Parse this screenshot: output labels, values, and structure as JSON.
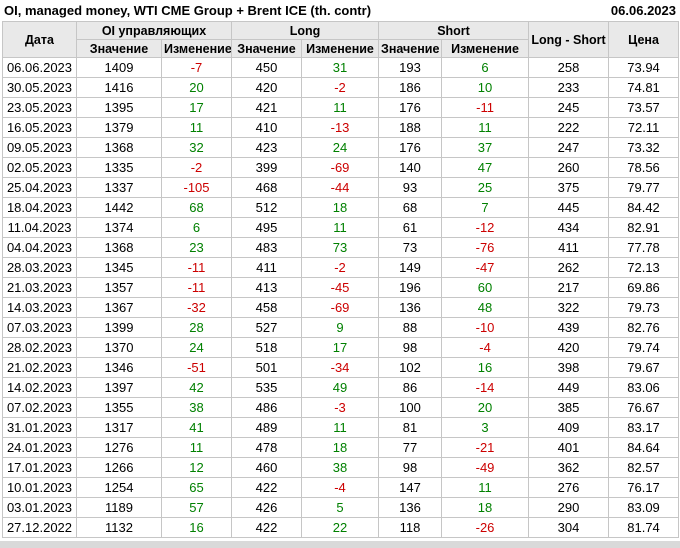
{
  "header": {
    "title": "OI, managed money, WTI CME Group + Brent ICE (th. contr)",
    "report_date": "06.06.2023"
  },
  "colors": {
    "positive": "#008000",
    "negative": "#cc0000",
    "header_bg": "#e9e9e9",
    "border": "#c6c6c6"
  },
  "chart_data": {
    "type": "table",
    "title": "OI, managed money, WTI CME Group + Brent ICE (th. contr)",
    "report_date": "06.06.2023",
    "column_groups": [
      {
        "label": "Дата"
      },
      {
        "label": "OI управляющих"
      },
      {
        "label": "Long"
      },
      {
        "label": "Short"
      },
      {
        "label": "Long - Short"
      },
      {
        "label": "Цена"
      }
    ],
    "sub_headers": [
      "Значение",
      "Изменение",
      "Значение",
      "Изменение",
      "Значение",
      "Изменение"
    ],
    "rows": [
      {
        "date": "06.06.2023",
        "oi": 1409,
        "oi_chg": -7,
        "long": 450,
        "long_chg": 31,
        "short": 193,
        "short_chg": 6,
        "long_short": 258,
        "price": 73.94
      },
      {
        "date": "30.05.2023",
        "oi": 1416,
        "oi_chg": 20,
        "long": 420,
        "long_chg": -2,
        "short": 186,
        "short_chg": 10,
        "long_short": 233,
        "price": 74.81
      },
      {
        "date": "23.05.2023",
        "oi": 1395,
        "oi_chg": 17,
        "long": 421,
        "long_chg": 11,
        "short": 176,
        "short_chg": -11,
        "long_short": 245,
        "price": 73.57
      },
      {
        "date": "16.05.2023",
        "oi": 1379,
        "oi_chg": 11,
        "long": 410,
        "long_chg": -13,
        "short": 188,
        "short_chg": 11,
        "long_short": 222,
        "price": 72.11
      },
      {
        "date": "09.05.2023",
        "oi": 1368,
        "oi_chg": 32,
        "long": 423,
        "long_chg": 24,
        "short": 176,
        "short_chg": 37,
        "long_short": 247,
        "price": 73.32
      },
      {
        "date": "02.05.2023",
        "oi": 1335,
        "oi_chg": -2,
        "long": 399,
        "long_chg": -69,
        "short": 140,
        "short_chg": 47,
        "long_short": 260,
        "price": 78.56
      },
      {
        "date": "25.04.2023",
        "oi": 1337,
        "oi_chg": -105,
        "long": 468,
        "long_chg": -44,
        "short": 93,
        "short_chg": 25,
        "long_short": 375,
        "price": 79.77
      },
      {
        "date": "18.04.2023",
        "oi": 1442,
        "oi_chg": 68,
        "long": 512,
        "long_chg": 18,
        "short": 68,
        "short_chg": 7,
        "long_short": 445,
        "price": 84.42
      },
      {
        "date": "11.04.2023",
        "oi": 1374,
        "oi_chg": 6,
        "long": 495,
        "long_chg": 11,
        "short": 61,
        "short_chg": -12,
        "long_short": 434,
        "price": 82.91
      },
      {
        "date": "04.04.2023",
        "oi": 1368,
        "oi_chg": 23,
        "long": 483,
        "long_chg": 73,
        "short": 73,
        "short_chg": -76,
        "long_short": 411,
        "price": 77.78
      },
      {
        "date": "28.03.2023",
        "oi": 1345,
        "oi_chg": -11,
        "long": 411,
        "long_chg": -2,
        "short": 149,
        "short_chg": -47,
        "long_short": 262,
        "price": 72.13
      },
      {
        "date": "21.03.2023",
        "oi": 1357,
        "oi_chg": -11,
        "long": 413,
        "long_chg": -45,
        "short": 196,
        "short_chg": 60,
        "long_short": 217,
        "price": 69.86
      },
      {
        "date": "14.03.2023",
        "oi": 1367,
        "oi_chg": -32,
        "long": 458,
        "long_chg": -69,
        "short": 136,
        "short_chg": 48,
        "long_short": 322,
        "price": 79.73
      },
      {
        "date": "07.03.2023",
        "oi": 1399,
        "oi_chg": 28,
        "long": 527,
        "long_chg": 9,
        "short": 88,
        "short_chg": -10,
        "long_short": 439,
        "price": 82.76
      },
      {
        "date": "28.02.2023",
        "oi": 1370,
        "oi_chg": 24,
        "long": 518,
        "long_chg": 17,
        "short": 98,
        "short_chg": -4,
        "long_short": 420,
        "price": 79.74
      },
      {
        "date": "21.02.2023",
        "oi": 1346,
        "oi_chg": -51,
        "long": 501,
        "long_chg": -34,
        "short": 102,
        "short_chg": 16,
        "long_short": 398,
        "price": 79.67
      },
      {
        "date": "14.02.2023",
        "oi": 1397,
        "oi_chg": 42,
        "long": 535,
        "long_chg": 49,
        "short": 86,
        "short_chg": -14,
        "long_short": 449,
        "price": 83.06
      },
      {
        "date": "07.02.2023",
        "oi": 1355,
        "oi_chg": 38,
        "long": 486,
        "long_chg": -3,
        "short": 100,
        "short_chg": 20,
        "long_short": 385,
        "price": 76.67
      },
      {
        "date": "31.01.2023",
        "oi": 1317,
        "oi_chg": 41,
        "long": 489,
        "long_chg": 11,
        "short": 81,
        "short_chg": 3,
        "long_short": 409,
        "price": 83.17
      },
      {
        "date": "24.01.2023",
        "oi": 1276,
        "oi_chg": 11,
        "long": 478,
        "long_chg": 18,
        "short": 77,
        "short_chg": -21,
        "long_short": 401,
        "price": 84.64
      },
      {
        "date": "17.01.2023",
        "oi": 1266,
        "oi_chg": 12,
        "long": 460,
        "long_chg": 38,
        "short": 98,
        "short_chg": -49,
        "long_short": 362,
        "price": 82.57
      },
      {
        "date": "10.01.2023",
        "oi": 1254,
        "oi_chg": 65,
        "long": 422,
        "long_chg": -4,
        "short": 147,
        "short_chg": 11,
        "long_short": 276,
        "price": 76.17
      },
      {
        "date": "03.01.2023",
        "oi": 1189,
        "oi_chg": 57,
        "long": 426,
        "long_chg": 5,
        "short": 136,
        "short_chg": 18,
        "long_short": 290,
        "price": 83.09
      },
      {
        "date": "27.12.2022",
        "oi": 1132,
        "oi_chg": 16,
        "long": 422,
        "long_chg": 22,
        "short": 118,
        "short_chg": -26,
        "long_short": 304,
        "price": 81.74
      }
    ]
  }
}
